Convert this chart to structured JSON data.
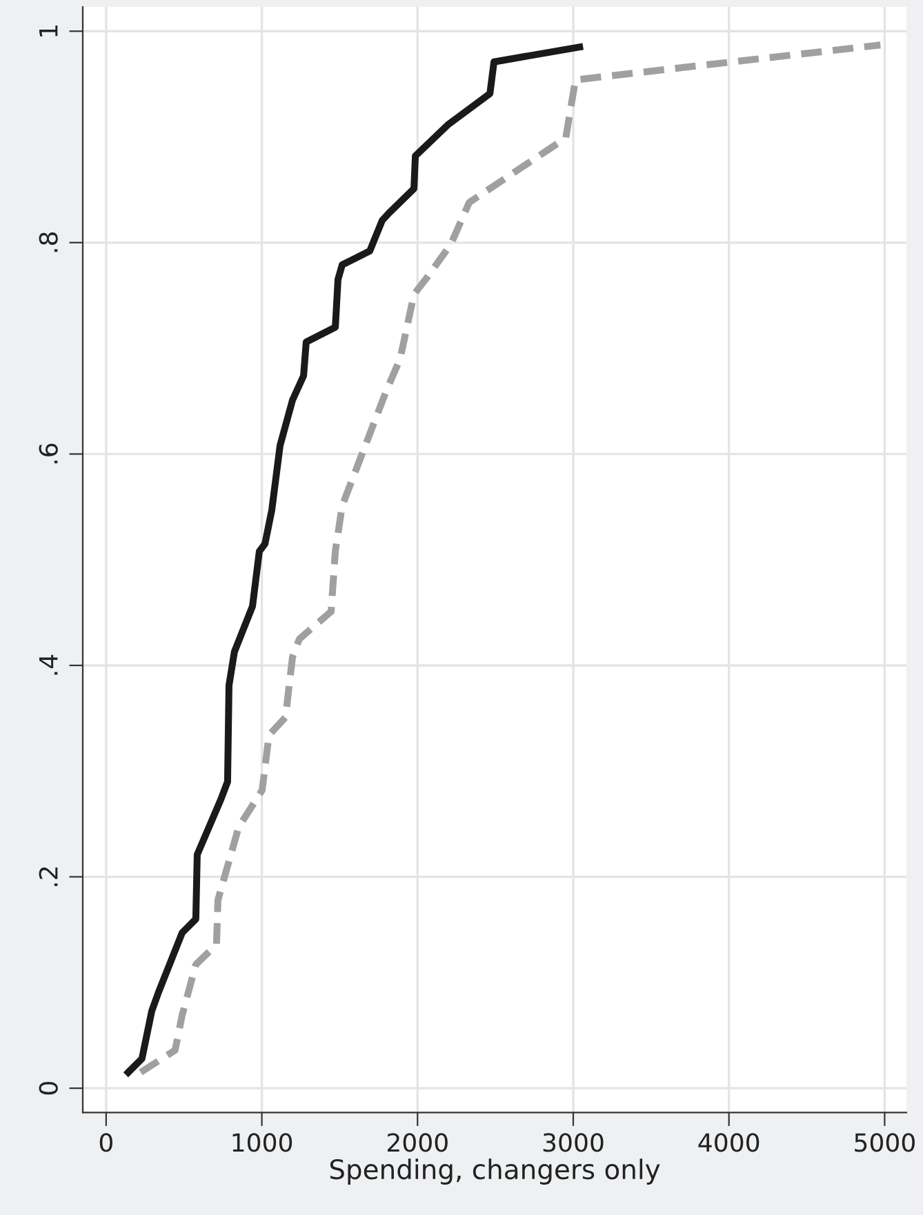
{
  "chart_data": {
    "type": "line",
    "xlabel": "Spending, changers only",
    "xlim": [
      -150,
      5140
    ],
    "ylim": [
      -0.023,
      1.023
    ],
    "xticks": [
      0,
      1000,
      2000,
      3000,
      4000,
      5000
    ],
    "yticks": [
      {
        "value": 0,
        "label": "0"
      },
      {
        "value": 0.2,
        "label": ".2"
      },
      {
        "value": 0.4,
        "label": ".4"
      },
      {
        "value": 0.6,
        "label": ".6"
      },
      {
        "value": 0.8,
        "label": ".8"
      },
      {
        "value": 1,
        "label": "1"
      }
    ],
    "grid": true,
    "marker": "none",
    "series": [
      {
        "color": "#1a1a1a",
        "line_style": "solid",
        "x": [
          142,
          230,
          293,
          337,
          488,
          576,
          585,
          736,
          780,
          789,
          824,
          940,
          984,
          1020,
          1064,
          1117,
          1197,
          1268,
          1285,
          1472,
          1489,
          1516,
          1693,
          1773,
          1817,
          1977,
          1986,
          2199,
          2465,
          2491,
          3041
        ],
        "values": [
          0.015,
          0.028,
          0.073,
          0.091,
          0.147,
          0.16,
          0.221,
          0.273,
          0.29,
          0.381,
          0.413,
          0.456,
          0.508,
          0.515,
          0.547,
          0.608,
          0.651,
          0.674,
          0.706,
          0.72,
          0.765,
          0.779,
          0.792,
          0.821,
          0.828,
          0.851,
          0.882,
          0.912,
          0.941,
          0.971,
          0.985
        ]
      },
      {
        "color": "#a0a0a0",
        "line_style": "dashed",
        "x": [
          222,
          443,
          488,
          576,
          709,
          718,
          851,
          1002,
          1046,
          1152,
          1197,
          1241,
          1445,
          1472,
          1516,
          1800,
          1888,
          1977,
          2066,
          2216,
          2332,
          2952,
          3014,
          4973
        ],
        "values": [
          0.015,
          0.036,
          0.069,
          0.117,
          0.136,
          0.178,
          0.247,
          0.282,
          0.334,
          0.351,
          0.408,
          0.425,
          0.451,
          0.508,
          0.551,
          0.66,
          0.69,
          0.751,
          0.768,
          0.799,
          0.838,
          0.899,
          0.954,
          0.987
        ]
      }
    ]
  }
}
